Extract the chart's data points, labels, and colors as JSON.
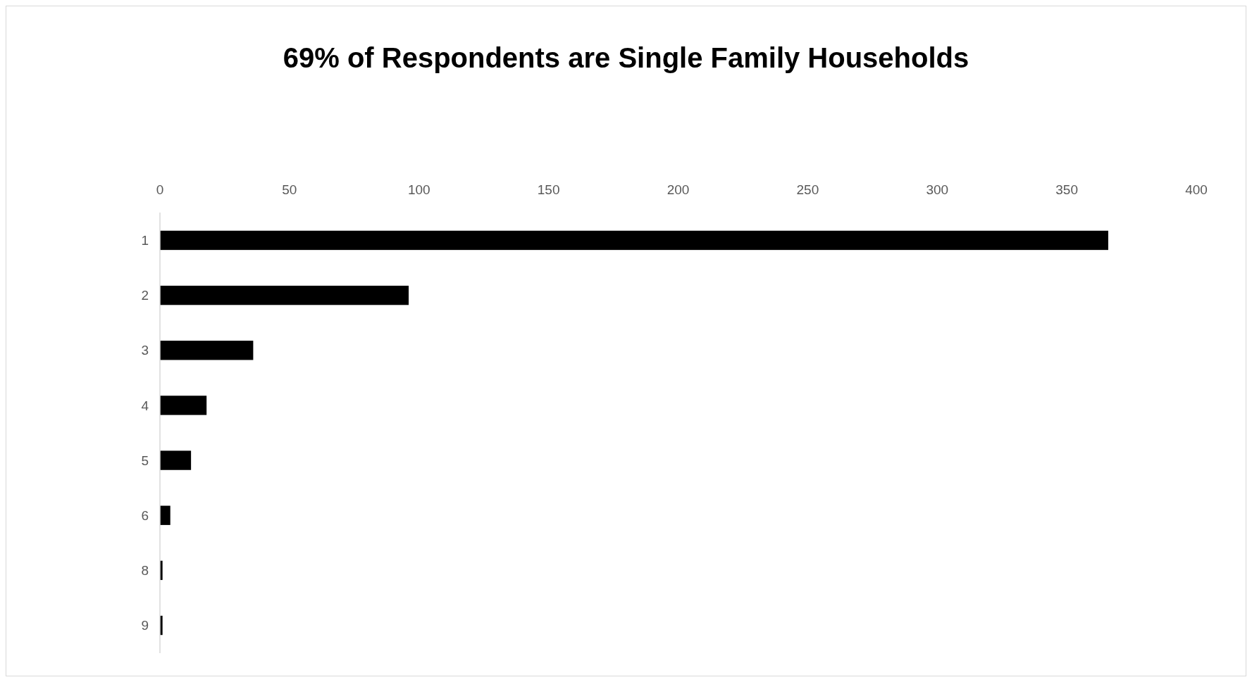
{
  "chart_data": {
    "type": "bar",
    "orientation": "horizontal",
    "title": "69% of Respondents are Single Family Households",
    "categories": [
      "1",
      "2",
      "3",
      "4",
      "5",
      "6",
      "8",
      "9"
    ],
    "values": [
      366,
      96,
      36,
      18,
      12,
      4,
      1,
      1
    ],
    "color": "#000000",
    "xlim": [
      0,
      400
    ],
    "xticks": [
      0,
      50,
      100,
      150,
      200,
      250,
      300,
      350,
      400
    ]
  }
}
